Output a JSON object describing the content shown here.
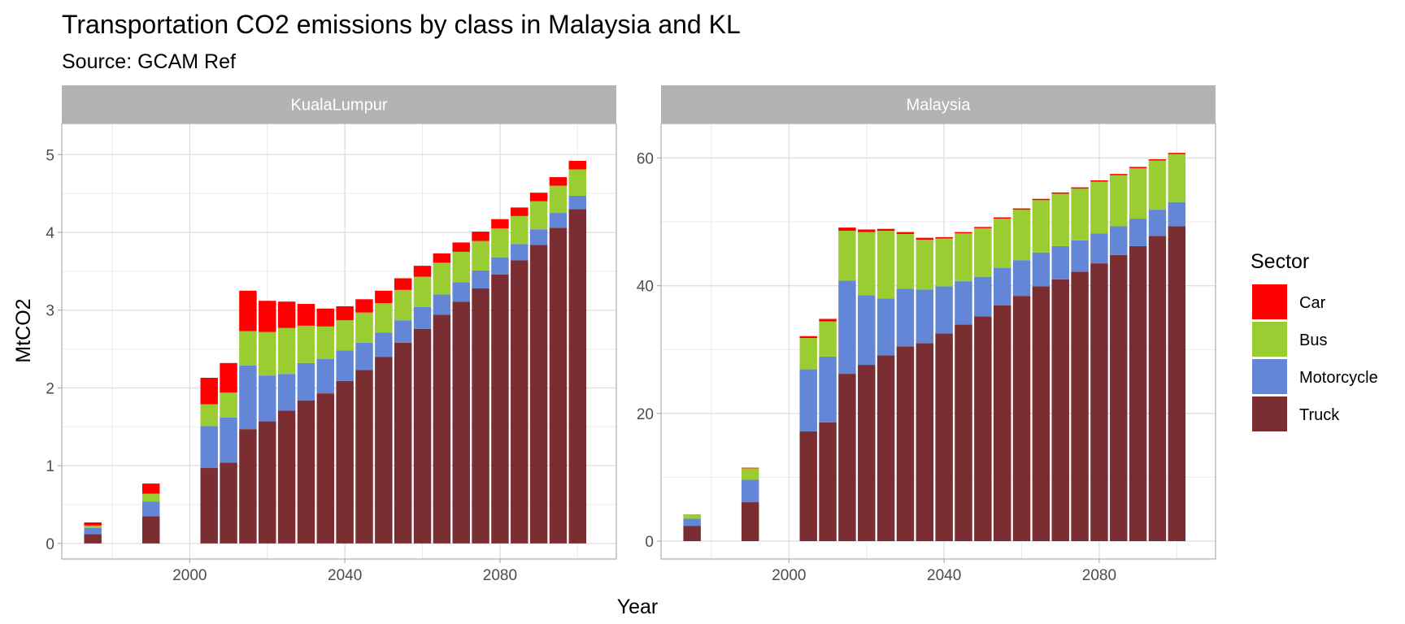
{
  "chart_data": {
    "type": "bar",
    "stacked": true,
    "title": "Transportation CO2 emissions by class in Malaysia and KL",
    "subtitle": "Source: GCAM Ref",
    "xlabel": "Year",
    "ylabel": "MtCO2",
    "x_ticks": [
      2000,
      2040,
      2080
    ],
    "xlim": [
      1967,
      2110
    ],
    "grid": true,
    "legend": {
      "title": "Sector",
      "placement": "right",
      "entries": [
        {
          "name": "Car",
          "color": "#ff0000"
        },
        {
          "name": "Bus",
          "color": "#9acd32"
        },
        {
          "name": "Motorcycle",
          "color": "#6387d6"
        },
        {
          "name": "Truck",
          "color": "#7a2e32"
        }
      ]
    },
    "stack_order": [
      "Truck",
      "Motorcycle",
      "Bus",
      "Car"
    ],
    "x": [
      1975,
      1990,
      2005,
      2010,
      2015,
      2020,
      2025,
      2030,
      2035,
      2040,
      2045,
      2050,
      2055,
      2060,
      2065,
      2070,
      2075,
      2080,
      2085,
      2090,
      2095,
      2100
    ],
    "panels": [
      {
        "strip": "KualaLumpur",
        "ylim": [
          -0.2,
          5.4
        ],
        "y_ticks": [
          0,
          1,
          2,
          3,
          4,
          5
        ],
        "series": [
          {
            "name": "Truck",
            "values": [
              0.12,
              0.35,
              0.97,
              1.04,
              1.47,
              1.57,
              1.71,
              1.84,
              1.93,
              2.09,
              2.23,
              2.4,
              2.58,
              2.76,
              2.94,
              3.11,
              3.28,
              3.46,
              3.64,
              3.84,
              4.06,
              4.3
            ]
          },
          {
            "name": "Motorcycle",
            "values": [
              0.08,
              0.19,
              0.54,
              0.58,
              0.82,
              0.59,
              0.47,
              0.48,
              0.44,
              0.39,
              0.35,
              0.31,
              0.29,
              0.28,
              0.26,
              0.25,
              0.23,
              0.22,
              0.21,
              0.2,
              0.19,
              0.17
            ]
          },
          {
            "name": "Bus",
            "values": [
              0.03,
              0.1,
              0.28,
              0.32,
              0.44,
              0.56,
              0.59,
              0.48,
              0.42,
              0.39,
              0.39,
              0.38,
              0.39,
              0.39,
              0.41,
              0.39,
              0.38,
              0.37,
              0.36,
              0.36,
              0.35,
              0.34
            ]
          },
          {
            "name": "Car",
            "values": [
              0.04,
              0.13,
              0.34,
              0.38,
              0.52,
              0.4,
              0.34,
              0.28,
              0.23,
              0.18,
              0.17,
              0.16,
              0.15,
              0.14,
              0.12,
              0.12,
              0.12,
              0.12,
              0.11,
              0.11,
              0.11,
              0.11
            ]
          }
        ]
      },
      {
        "strip": "Malaysia",
        "ylim": [
          -2.8,
          65.4
        ],
        "y_ticks": [
          0,
          20,
          40,
          60
        ],
        "series": [
          {
            "name": "Truck",
            "values": [
              2.4,
              6.1,
              17.2,
              18.6,
              26.2,
              27.6,
              29.1,
              30.5,
              31.0,
              32.5,
              33.9,
              35.2,
              36.9,
              38.4,
              39.9,
              41.0,
              42.2,
              43.5,
              44.8,
              46.2,
              47.8,
              49.3
            ]
          },
          {
            "name": "Motorcycle",
            "values": [
              1.1,
              3.5,
              9.7,
              10.3,
              14.6,
              10.9,
              8.9,
              9.0,
              8.4,
              7.4,
              6.8,
              6.2,
              5.9,
              5.6,
              5.3,
              5.2,
              4.9,
              4.7,
              4.5,
              4.3,
              4.1,
              3.8
            ]
          },
          {
            "name": "Bus",
            "values": [
              0.7,
              1.8,
              4.9,
              5.5,
              7.8,
              9.9,
              10.6,
              8.6,
              7.8,
              7.5,
              7.5,
              7.6,
              7.7,
              7.9,
              8.2,
              8.2,
              8.1,
              8.1,
              8.0,
              7.9,
              7.7,
              7.5
            ]
          },
          {
            "name": "Car",
            "values": [
              0.0,
              0.1,
              0.3,
              0.4,
              0.5,
              0.4,
              0.3,
              0.3,
              0.3,
              0.2,
              0.2,
              0.2,
              0.2,
              0.2,
              0.2,
              0.2,
              0.2,
              0.2,
              0.2,
              0.2,
              0.2,
              0.2
            ]
          }
        ]
      }
    ]
  }
}
